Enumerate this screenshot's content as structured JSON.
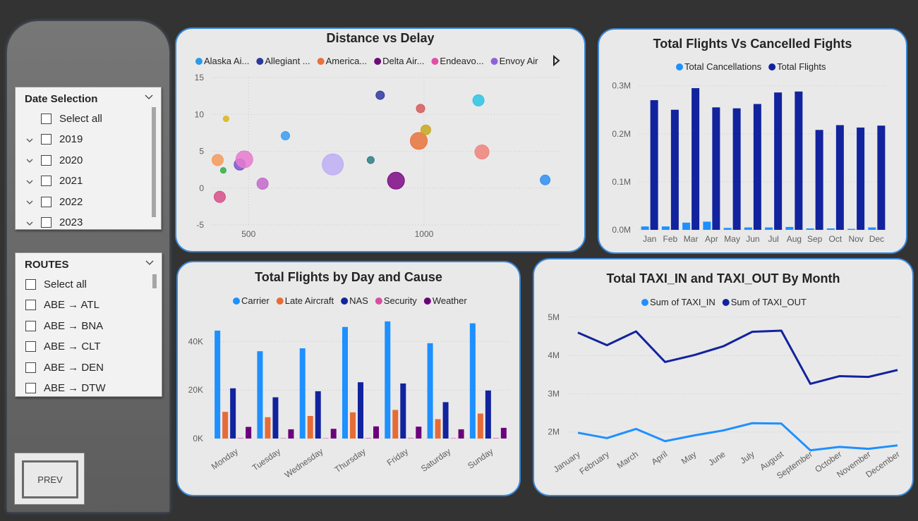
{
  "colors": {
    "light_blue": "#1e90ff",
    "navy": "#12239e",
    "orange": "#e66c37",
    "magenta": "#d64fa0",
    "purple": "#6b007b"
  },
  "sidebar": {
    "date_slicer": {
      "title": "Date Selection",
      "items": [
        {
          "label": "Select all",
          "expandable": false
        },
        {
          "label": "2019",
          "expandable": true
        },
        {
          "label": "2020",
          "expandable": true
        },
        {
          "label": "2021",
          "expandable": true
        },
        {
          "label": "2022",
          "expandable": true
        },
        {
          "label": "2023",
          "expandable": true
        }
      ]
    },
    "routes_slicer": {
      "title": "ROUTES",
      "items": [
        {
          "label": "Select all"
        },
        {
          "label": "ABE → ATL"
        },
        {
          "label": "ABE → BNA"
        },
        {
          "label": "ABE → CLT"
        },
        {
          "label": "ABE → DEN"
        },
        {
          "label": "ABE → DTW"
        }
      ]
    },
    "prev_label": "PREV"
  },
  "scatter": {
    "title": "Distance vs Delay",
    "legend": [
      {
        "name": "Alaska Ai...",
        "color": "#2b9be6"
      },
      {
        "name": "Allegiant ...",
        "color": "#2a3a9e"
      },
      {
        "name": "America...",
        "color": "#e8713c"
      },
      {
        "name": "Delta Air...",
        "color": "#6e0a7a"
      },
      {
        "name": "Endeavo...",
        "color": "#e04fa6"
      },
      {
        "name": "Envoy Air",
        "color": "#8b62d9"
      }
    ],
    "chart_data": {
      "type": "scatter",
      "xlim": [
        395,
        1390
      ],
      "ylim": [
        -5,
        15
      ],
      "x_ticks": [
        500,
        1000
      ],
      "y_ticks": [
        -5,
        0,
        5,
        10,
        15
      ],
      "points": [
        {
          "x": 412,
          "y": 3.8,
          "size": 8,
          "color": "#f59b5b"
        },
        {
          "x": 418,
          "y": -1.2,
          "size": 8,
          "color": "#d6508a"
        },
        {
          "x": 428,
          "y": 2.4,
          "size": 4,
          "color": "#2fae4a"
        },
        {
          "x": 436,
          "y": 9.4,
          "size": 4,
          "color": "#d9b51b"
        },
        {
          "x": 475,
          "y": 3.2,
          "size": 8,
          "color": "#7a53c9"
        },
        {
          "x": 488,
          "y": 3.9,
          "size": 12,
          "color": "#e77ad0"
        },
        {
          "x": 540,
          "y": 0.6,
          "size": 8,
          "color": "#c469c9"
        },
        {
          "x": 605,
          "y": 7.1,
          "size": 6,
          "color": "#3a9cf0"
        },
        {
          "x": 740,
          "y": 3.2,
          "size": 15,
          "color": "#bdaef5"
        },
        {
          "x": 848,
          "y": 3.8,
          "size": 5,
          "color": "#2f7d86"
        },
        {
          "x": 875,
          "y": 12.6,
          "size": 6,
          "color": "#2e3aa0"
        },
        {
          "x": 920,
          "y": 1.0,
          "size": 12,
          "color": "#7d0a86"
        },
        {
          "x": 985,
          "y": 6.4,
          "size": 12,
          "color": "#e9723c"
        },
        {
          "x": 990,
          "y": 10.8,
          "size": 6,
          "color": "#d35a5a"
        },
        {
          "x": 1005,
          "y": 7.9,
          "size": 7,
          "color": "#c7a71d"
        },
        {
          "x": 1155,
          "y": 11.9,
          "size": 8,
          "color": "#2bc4e4"
        },
        {
          "x": 1165,
          "y": 4.9,
          "size": 10,
          "color": "#f0827a"
        },
        {
          "x": 1345,
          "y": 1.1,
          "size": 7,
          "color": "#2e8ff0"
        }
      ]
    }
  },
  "total_flights": {
    "title": "Total Flights Vs Cancelled Fights",
    "chart_data": {
      "type": "bar",
      "categories": [
        "Jan",
        "Feb",
        "Mar",
        "Apr",
        "May",
        "Jun",
        "Jul",
        "Aug",
        "Sep",
        "Oct",
        "Nov",
        "Dec"
      ],
      "series": [
        {
          "name": "Total Cancellations",
          "color": "#1e90ff",
          "values": [
            0.007,
            0.007,
            0.015,
            0.017,
            0.004,
            0.005,
            0.005,
            0.006,
            0.003,
            0.003,
            0.002,
            0.005
          ]
        },
        {
          "name": "Total Flights",
          "color": "#12239e",
          "values": [
            0.27,
            0.25,
            0.295,
            0.255,
            0.253,
            0.262,
            0.286,
            0.288,
            0.208,
            0.218,
            0.213,
            0.217
          ]
        }
      ],
      "ylim": [
        0,
        0.32
      ],
      "y_ticks": [
        0,
        0.1,
        0.2,
        0.3
      ],
      "y_tick_labels": [
        "0.0M",
        "0.1M",
        "0.2M",
        "0.3M"
      ]
    }
  },
  "flights_by_day": {
    "title": "Total Flights by Day and Cause",
    "chart_data": {
      "type": "bar",
      "categories": [
        "Monday",
        "Tuesday",
        "Wednesday",
        "Thursday",
        "Friday",
        "Saturday",
        "Sunday"
      ],
      "series": [
        {
          "name": "Carrier",
          "color": "#1e90ff",
          "values": [
            44500,
            36000,
            37200,
            46000,
            48300,
            39300,
            47500
          ]
        },
        {
          "name": "Late Aircraft",
          "color": "#e66c37",
          "values": [
            11000,
            8800,
            9300,
            10800,
            11800,
            8000,
            10300
          ]
        },
        {
          "name": "NAS",
          "color": "#12239e",
          "values": [
            20700,
            17000,
            19500,
            23200,
            22700,
            15000,
            19800
          ]
        },
        {
          "name": "Security",
          "color": "#d64fa0",
          "values": [
            200,
            150,
            150,
            200,
            200,
            150,
            200
          ]
        },
        {
          "name": "Weather",
          "color": "#6b007b",
          "values": [
            4800,
            3800,
            4000,
            5000,
            4900,
            3800,
            4400
          ]
        }
      ],
      "ylim": [
        0,
        50000
      ],
      "y_ticks": [
        0,
        20000,
        40000
      ],
      "y_tick_labels": [
        "0K",
        "20K",
        "40K"
      ]
    }
  },
  "taxi": {
    "title": "Total TAXI_IN and TAXI_OUT By Month",
    "chart_data": {
      "type": "line",
      "categories": [
        "January",
        "February",
        "March",
        "April",
        "May",
        "June",
        "July",
        "August",
        "September",
        "October",
        "November",
        "December"
      ],
      "series": [
        {
          "name": "Sum of TAXI_IN",
          "color": "#1e90ff",
          "values": [
            1.98,
            1.84,
            2.08,
            1.76,
            1.91,
            2.04,
            2.23,
            2.22,
            1.52,
            1.61,
            1.56,
            1.65
          ]
        },
        {
          "name": "Sum of TAXI_OUT",
          "color": "#12239e",
          "values": [
            4.6,
            4.27,
            4.63,
            3.83,
            4.01,
            4.24,
            4.62,
            4.65,
            3.26,
            3.46,
            3.44,
            3.62
          ]
        }
      ],
      "ylim": [
        1.35,
        5
      ],
      "y_ticks": [
        2,
        3,
        4,
        5
      ],
      "y_tick_labels": [
        "2M",
        "3M",
        "4M",
        "5M"
      ]
    }
  }
}
